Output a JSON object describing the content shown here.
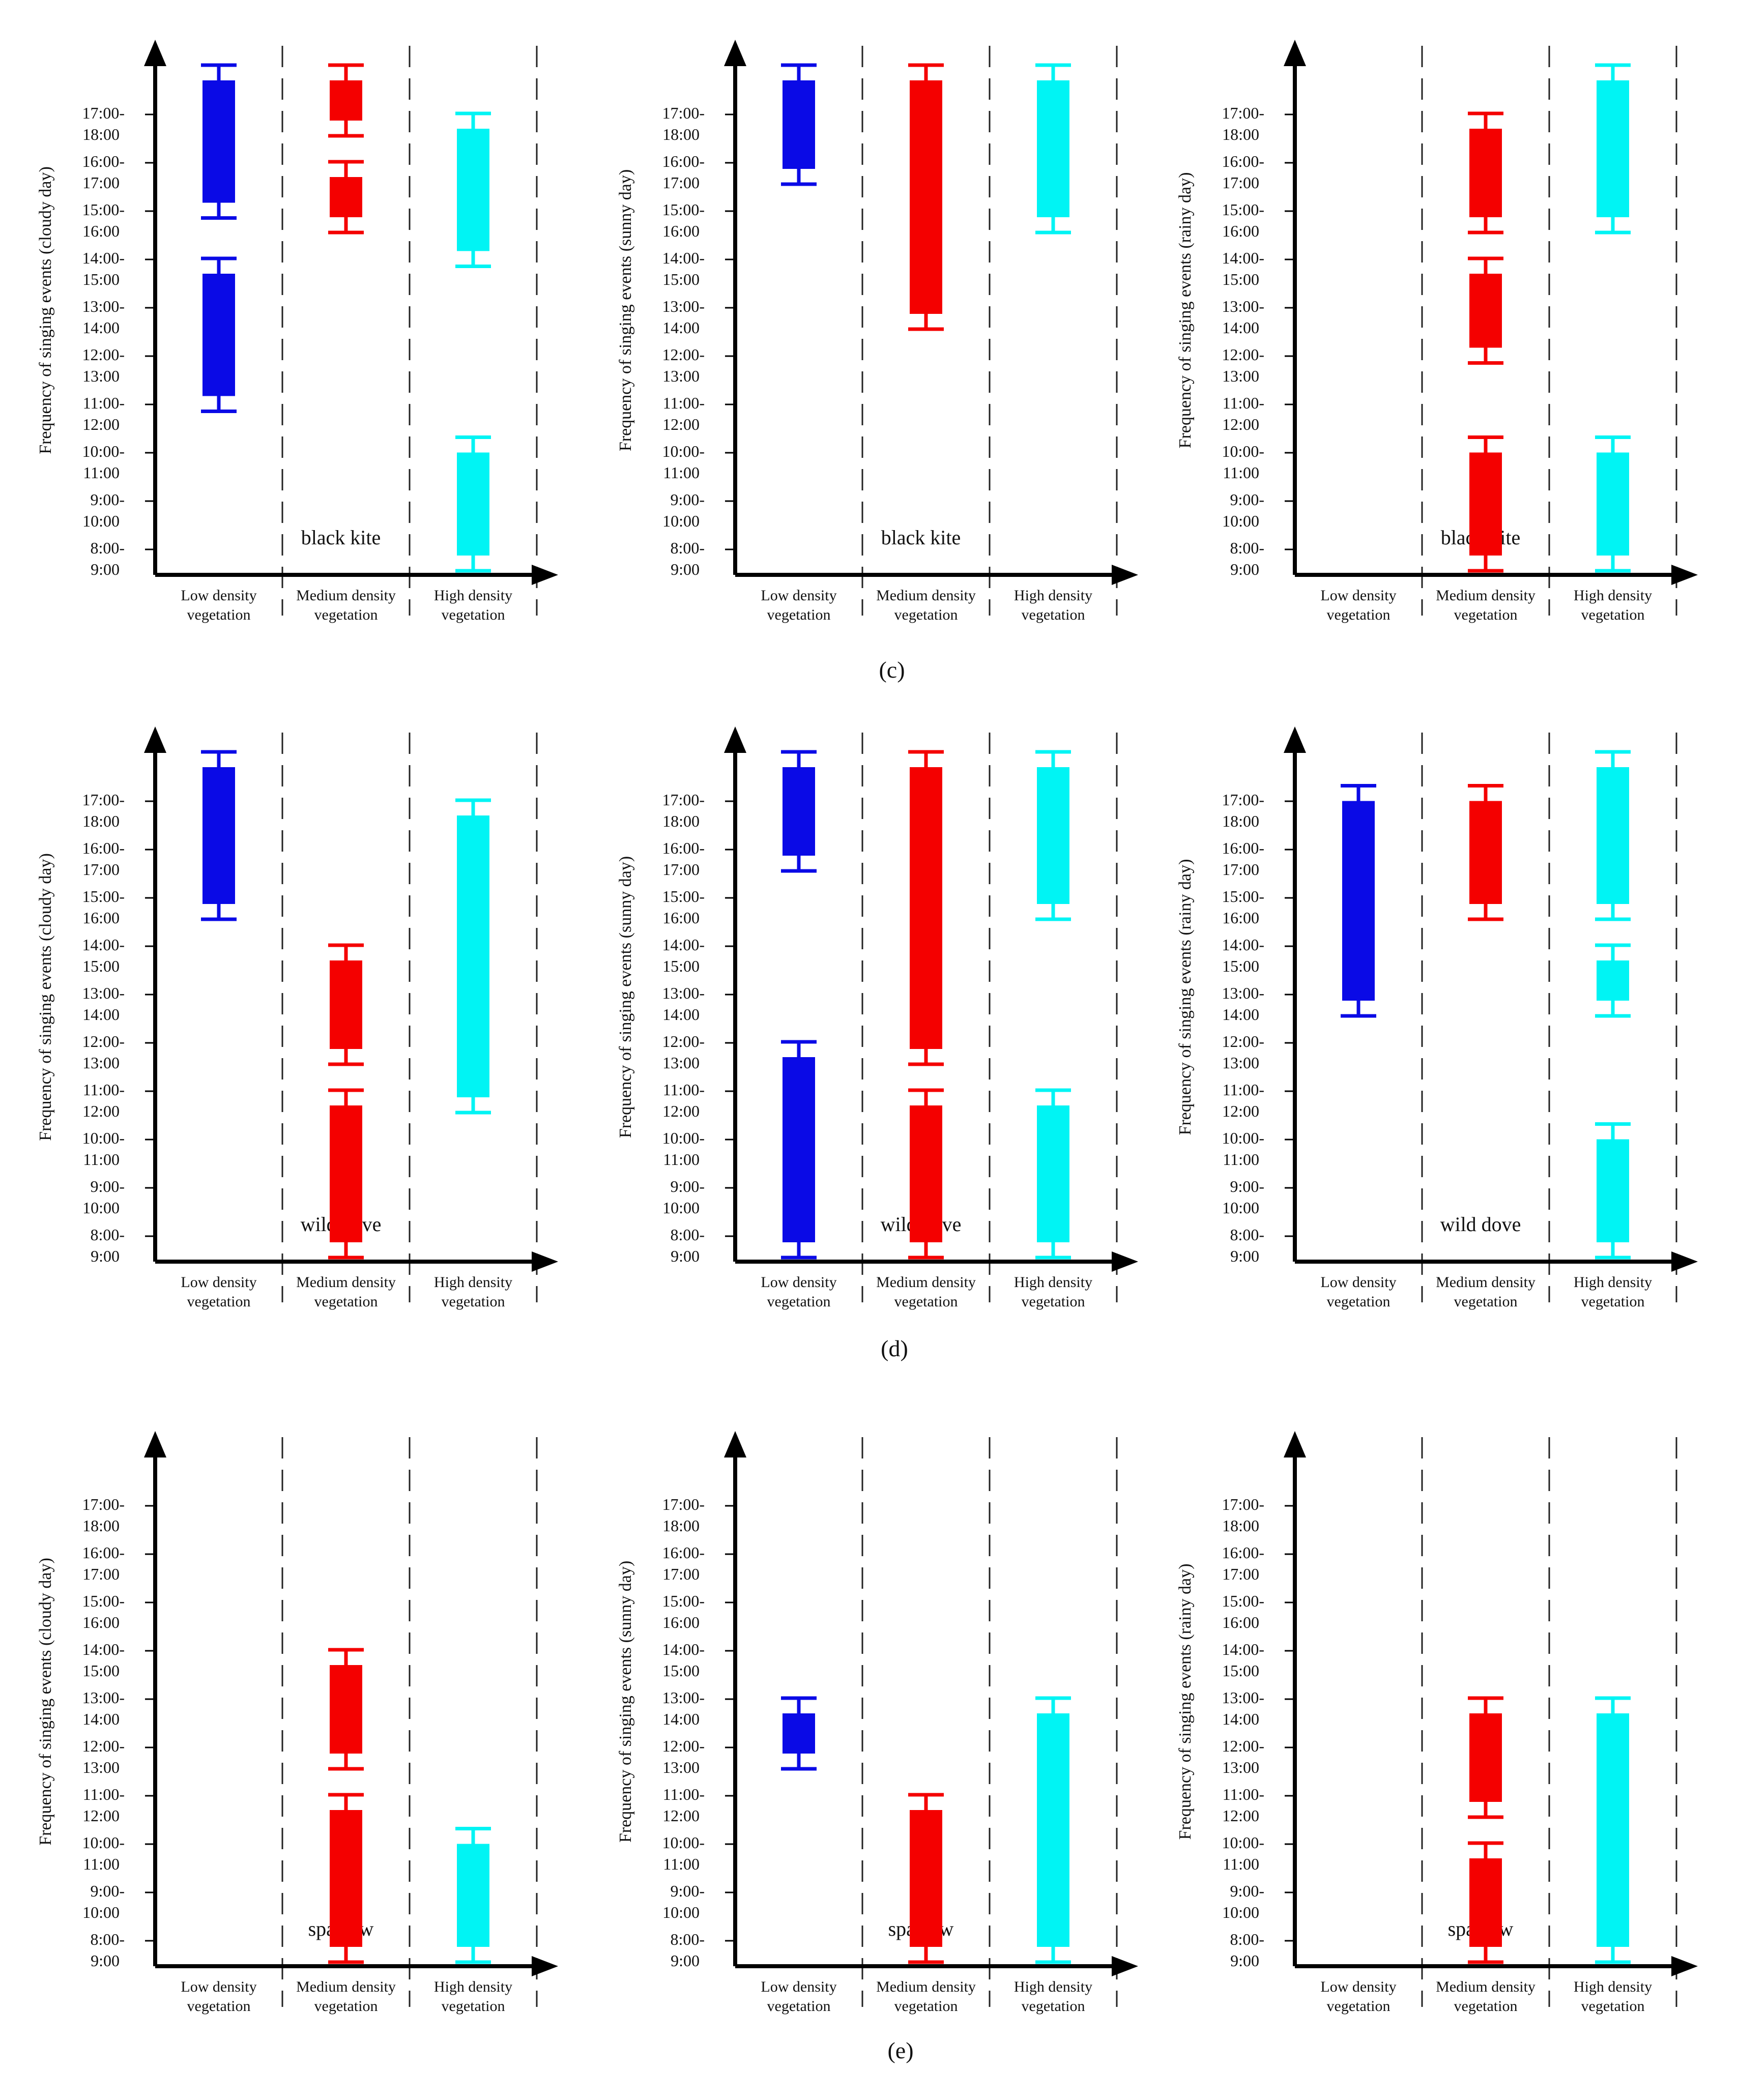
{
  "figure": {
    "row_labels": [
      "(c)",
      "(d)",
      "(e)"
    ],
    "colors": {
      "low": "#0a0ae6",
      "medium": "#f40000",
      "high": "#00f4f4",
      "axis": "#000000",
      "divider": "#222222"
    },
    "y_ticks": [
      {
        "top": "8:00-",
        "bottom": "9:00"
      },
      {
        "top": "9:00-",
        "bottom": "10:00"
      },
      {
        "top": "10:00-",
        "bottom": "11:00"
      },
      {
        "top": "11:00-",
        "bottom": "12:00"
      },
      {
        "top": "12:00-",
        "bottom": "13:00"
      },
      {
        "top": "13:00-",
        "bottom": "14:00"
      },
      {
        "top": "14:00-",
        "bottom": "15:00"
      },
      {
        "top": "15:00-",
        "bottom": "16:00"
      },
      {
        "top": "16:00-",
        "bottom": "17:00"
      },
      {
        "top": "17:00-",
        "bottom": "18:00"
      }
    ],
    "categories": [
      {
        "line1": "Low density",
        "line2": "vegetation"
      },
      {
        "line1": "Medium density",
        "line2": "vegetation"
      },
      {
        "line1": "High density",
        "line2": "vegetation"
      }
    ],
    "ylabel_prefix": "Frequency of singing events",
    "weathers": [
      "(cloudy day)",
      "(sunny day)",
      "(rainy day)"
    ]
  },
  "chart_data": [
    {
      "type": "bar",
      "row": 0,
      "col": 0,
      "species": "black kite",
      "ylabel": "Frequency of singing events (cloudy day)",
      "note": "bars span time-slot indices; slot 0 = 8:00-9:00 ... slot 9 = 17:00-18:00",
      "ylim": [
        0,
        10
      ],
      "bars": [
        {
          "category": 0,
          "from": 3.3,
          "to": 6.0
        },
        {
          "category": 0,
          "from": 7.3,
          "to": 10.0
        },
        {
          "category": 1,
          "from": 7.0,
          "to": 8.0
        },
        {
          "category": 1,
          "from": 9.0,
          "to": 10.0
        },
        {
          "category": 2,
          "from": 0.0,
          "to": 2.3
        },
        {
          "category": 2,
          "from": 6.3,
          "to": 9.0
        }
      ]
    },
    {
      "type": "bar",
      "row": 0,
      "col": 1,
      "species": "black kite",
      "ylabel": "Frequency of singing events (sunny day)",
      "ylim": [
        0,
        10
      ],
      "bars": [
        {
          "category": 0,
          "from": 8.0,
          "to": 10.0
        },
        {
          "category": 1,
          "from": 5.0,
          "to": 10.0
        },
        {
          "category": 2,
          "from": 7.0,
          "to": 10.0
        }
      ]
    },
    {
      "type": "bar",
      "row": 0,
      "col": 2,
      "species": "black kite",
      "ylabel": "Frequency of singing events (rainy day)",
      "ylim": [
        0,
        10
      ],
      "bars": [
        {
          "category": 1,
          "from": 0.0,
          "to": 2.3
        },
        {
          "category": 1,
          "from": 4.3,
          "to": 6.0
        },
        {
          "category": 1,
          "from": 7.0,
          "to": 9.0
        },
        {
          "category": 2,
          "from": 0.0,
          "to": 2.3
        },
        {
          "category": 2,
          "from": 7.0,
          "to": 10.0
        }
      ]
    },
    {
      "type": "bar",
      "row": 1,
      "col": 0,
      "species": "wild dove",
      "ylabel": "Frequency of singing events (cloudy day)",
      "ylim": [
        0,
        10
      ],
      "bars": [
        {
          "category": 0,
          "from": 7.0,
          "to": 10.0
        },
        {
          "category": 1,
          "from": 0.0,
          "to": 3.0
        },
        {
          "category": 1,
          "from": 4.0,
          "to": 6.0
        },
        {
          "category": 2,
          "from": 3.0,
          "to": 9.0
        }
      ]
    },
    {
      "type": "bar",
      "row": 1,
      "col": 1,
      "species": "wild dove",
      "ylabel": "Frequency of singing events (sunny day)",
      "ylim": [
        0,
        10
      ],
      "bars": [
        {
          "category": 0,
          "from": 0.0,
          "to": 4.0
        },
        {
          "category": 0,
          "from": 8.0,
          "to": 10.0
        },
        {
          "category": 1,
          "from": 0.0,
          "to": 3.0
        },
        {
          "category": 1,
          "from": 4.0,
          "to": 10.0
        },
        {
          "category": 2,
          "from": 0.0,
          "to": 3.0
        },
        {
          "category": 2,
          "from": 7.0,
          "to": 10.0
        }
      ]
    },
    {
      "type": "bar",
      "row": 1,
      "col": 2,
      "species": "wild dove",
      "ylabel": "Frequency of singing events (rainy day)",
      "ylim": [
        0,
        10
      ],
      "bars": [
        {
          "category": 0,
          "from": 5.0,
          "to": 9.3
        },
        {
          "category": 1,
          "from": 7.0,
          "to": 9.3
        },
        {
          "category": 2,
          "from": 0.0,
          "to": 2.3
        },
        {
          "category": 2,
          "from": 5.0,
          "to": 6.0
        },
        {
          "category": 2,
          "from": 7.0,
          "to": 10.0
        }
      ]
    },
    {
      "type": "bar",
      "row": 2,
      "col": 0,
      "species": "sparrow",
      "ylabel": "Frequency of singing events (cloudy day)",
      "ylim": [
        0,
        10
      ],
      "bars": [
        {
          "category": 1,
          "from": 0.0,
          "to": 3.0
        },
        {
          "category": 1,
          "from": 4.0,
          "to": 6.0
        },
        {
          "category": 2,
          "from": 0.0,
          "to": 2.3
        }
      ]
    },
    {
      "type": "bar",
      "row": 2,
      "col": 1,
      "species": "sparrow",
      "ylabel": "Frequency of singing events (sunny day)",
      "ylim": [
        0,
        10
      ],
      "bars": [
        {
          "category": 0,
          "from": 4.0,
          "to": 5.0
        },
        {
          "category": 1,
          "from": 0.0,
          "to": 3.0
        },
        {
          "category": 2,
          "from": 0.0,
          "to": 5.0
        }
      ]
    },
    {
      "type": "bar",
      "row": 2,
      "col": 2,
      "species": "sparrow",
      "ylabel": "Frequency of singing events (rainy day)",
      "ylim": [
        0,
        10
      ],
      "bars": [
        {
          "category": 1,
          "from": 0.0,
          "to": 2.0
        },
        {
          "category": 1,
          "from": 3.0,
          "to": 5.0
        },
        {
          "category": 2,
          "from": 0.0,
          "to": 5.0
        }
      ]
    }
  ]
}
